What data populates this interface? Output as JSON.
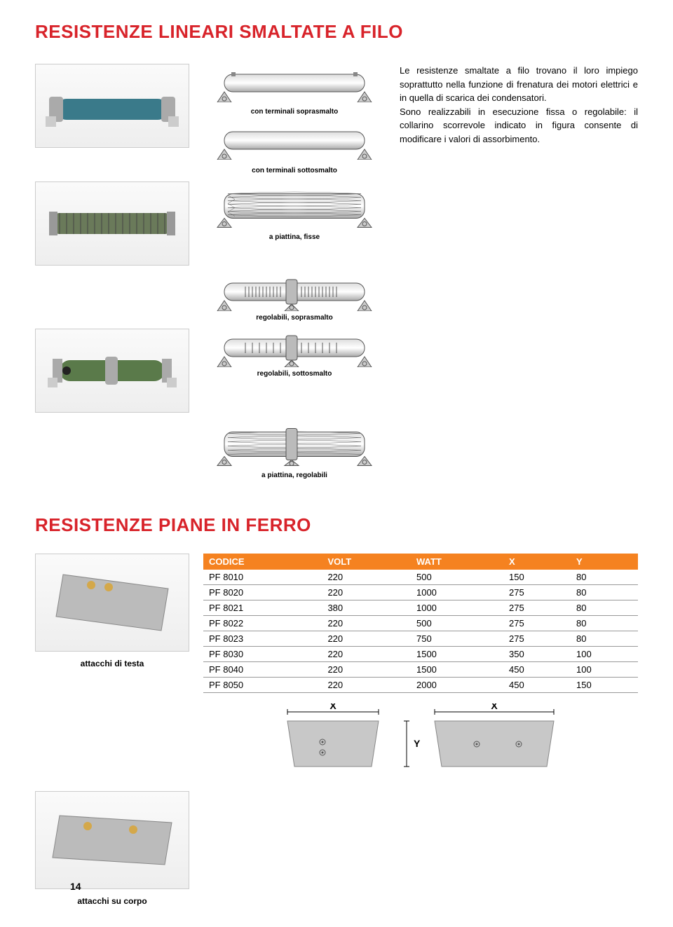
{
  "title1": "RESISTENZE LINEARI SMALTATE A FILO",
  "title2": "RESISTENZE PIANE IN FERRO",
  "description": {
    "p1": "Le resistenze smaltate a filo trovano il loro impiego soprattutto nella funzione di frena­tura dei motori elettrici e in quella di scarica dei condensatori.",
    "p2": "Sono realizzabili in esecuzione fissa o regola­bile: il collarino scorrevole indicato in figura consente di modificare i valori di assorbi­mento."
  },
  "captions": {
    "c1": "con terminali soprasmalto",
    "c2": "con terminali sottosmalto",
    "c3": "a piattina, fisse",
    "c4": "regolabili, soprasmalto",
    "c5": "regolabili, sottosmalto",
    "c6": "a piattina, regolabili",
    "b1": "attacchi di testa",
    "b2": "attacchi su corpo"
  },
  "table": {
    "headers": [
      "CODICE",
      "VOLT",
      "WATT",
      "X",
      "Y"
    ],
    "rows": [
      [
        "PF 8010",
        "220",
        "500",
        "150",
        "80"
      ],
      [
        "PF 8020",
        "220",
        "1000",
        "275",
        "80"
      ],
      [
        "PF 8021",
        "380",
        "1000",
        "275",
        "80"
      ],
      [
        "PF 8022",
        "220",
        "500",
        "275",
        "80"
      ],
      [
        "PF 8023",
        "220",
        "750",
        "275",
        "80"
      ],
      [
        "PF 8030",
        "220",
        "1500",
        "350",
        "100"
      ],
      [
        "PF 8040",
        "220",
        "1500",
        "450",
        "100"
      ],
      [
        "PF 8050",
        "220",
        "2000",
        "450",
        "150"
      ]
    ]
  },
  "dims": {
    "x": "X",
    "y": "Y"
  },
  "page": "14",
  "colors": {
    "accent": "#d8232a",
    "table_header": "#f58220",
    "border": "#999999"
  }
}
